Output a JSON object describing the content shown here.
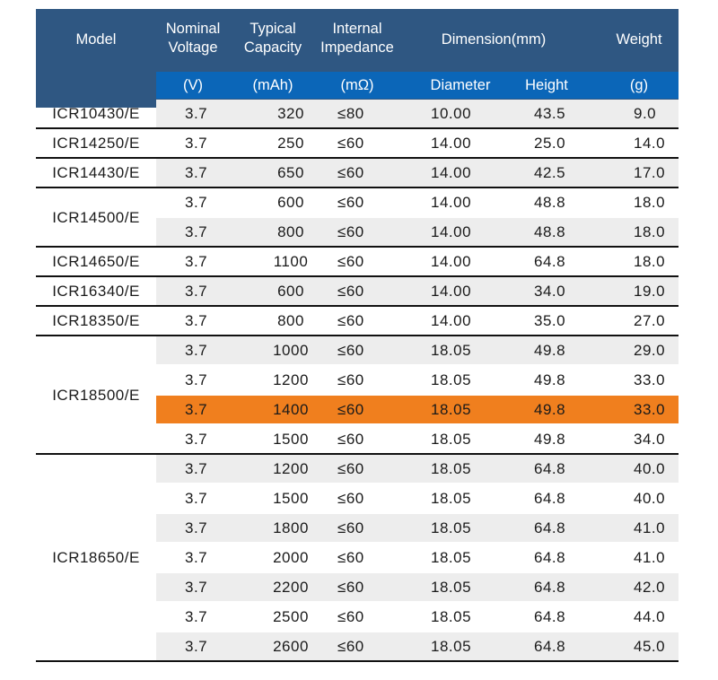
{
  "header": {
    "model": "Model",
    "voltage": [
      "Nominal",
      "Voltage"
    ],
    "capacity": [
      "Typical",
      "Capacity"
    ],
    "impedance": [
      "Internal",
      "Impedance"
    ],
    "dimension": "Dimension(mm)",
    "weight": "Weight"
  },
  "units": {
    "voltage": "(V)",
    "capacity": "(mAh)",
    "impedance": "(mΩ)",
    "diameter": "Diameter",
    "height": "Height",
    "weight": "(g)"
  },
  "colors": {
    "header_bg": "#2f5782",
    "units_bg": "#0b66b8",
    "stripe": "#ededed",
    "highlight": "#f07f1e"
  },
  "groups": [
    {
      "model": "ICR10430/E",
      "rows": [
        {
          "v": "3.7",
          "cap": "320",
          "imp": "≤80",
          "dia": "10.00",
          "h": "43.5",
          "w": "9.0"
        }
      ]
    },
    {
      "model": "ICR14250/E",
      "rows": [
        {
          "v": "3.7",
          "cap": "250",
          "imp": "≤60",
          "dia": "14.00",
          "h": "25.0",
          "w": "14.0"
        }
      ]
    },
    {
      "model": "ICR14430/E",
      "rows": [
        {
          "v": "3.7",
          "cap": "650",
          "imp": "≤60",
          "dia": "14.00",
          "h": "42.5",
          "w": "17.0"
        }
      ]
    },
    {
      "model": "ICR14500/E",
      "rows": [
        {
          "v": "3.7",
          "cap": "600",
          "imp": "≤60",
          "dia": "14.00",
          "h": "48.8",
          "w": "18.0"
        },
        {
          "v": "3.7",
          "cap": "800",
          "imp": "≤60",
          "dia": "14.00",
          "h": "48.8",
          "w": "18.0"
        }
      ]
    },
    {
      "model": "ICR14650/E",
      "rows": [
        {
          "v": "3.7",
          "cap": "1100",
          "imp": "≤60",
          "dia": "14.00",
          "h": "64.8",
          "w": "18.0"
        }
      ]
    },
    {
      "model": "ICR16340/E",
      "rows": [
        {
          "v": "3.7",
          "cap": "600",
          "imp": "≤60",
          "dia": "14.00",
          "h": "34.0",
          "w": "19.0"
        }
      ]
    },
    {
      "model": "ICR18350/E",
      "rows": [
        {
          "v": "3.7",
          "cap": "800",
          "imp": "≤60",
          "dia": "14.00",
          "h": "35.0",
          "w": "27.0"
        }
      ]
    },
    {
      "model": "ICR18500/E",
      "rows": [
        {
          "v": "3.7",
          "cap": "1000",
          "imp": "≤60",
          "dia": "18.05",
          "h": "49.8",
          "w": "29.0"
        },
        {
          "v": "3.7",
          "cap": "1200",
          "imp": "≤60",
          "dia": "18.05",
          "h": "49.8",
          "w": "33.0"
        },
        {
          "v": "3.7",
          "cap": "1400",
          "imp": "≤60",
          "dia": "18.05",
          "h": "49.8",
          "w": "33.0",
          "highlight": true
        },
        {
          "v": "3.7",
          "cap": "1500",
          "imp": "≤60",
          "dia": "18.05",
          "h": "49.8",
          "w": "34.0"
        }
      ]
    },
    {
      "model": "ICR18650/E",
      "rows": [
        {
          "v": "3.7",
          "cap": "1200",
          "imp": "≤60",
          "dia": "18.05",
          "h": "64.8",
          "w": "40.0"
        },
        {
          "v": "3.7",
          "cap": "1500",
          "imp": "≤60",
          "dia": "18.05",
          "h": "64.8",
          "w": "40.0"
        },
        {
          "v": "3.7",
          "cap": "1800",
          "imp": "≤60",
          "dia": "18.05",
          "h": "64.8",
          "w": "41.0"
        },
        {
          "v": "3.7",
          "cap": "2000",
          "imp": "≤60",
          "dia": "18.05",
          "h": "64.8",
          "w": "41.0"
        },
        {
          "v": "3.7",
          "cap": "2200",
          "imp": "≤60",
          "dia": "18.05",
          "h": "64.8",
          "w": "42.0"
        },
        {
          "v": "3.7",
          "cap": "2500",
          "imp": "≤60",
          "dia": "18.05",
          "h": "64.8",
          "w": "44.0"
        },
        {
          "v": "3.7",
          "cap": "2600",
          "imp": "≤60",
          "dia": "18.05",
          "h": "64.8",
          "w": "45.0"
        }
      ]
    }
  ]
}
